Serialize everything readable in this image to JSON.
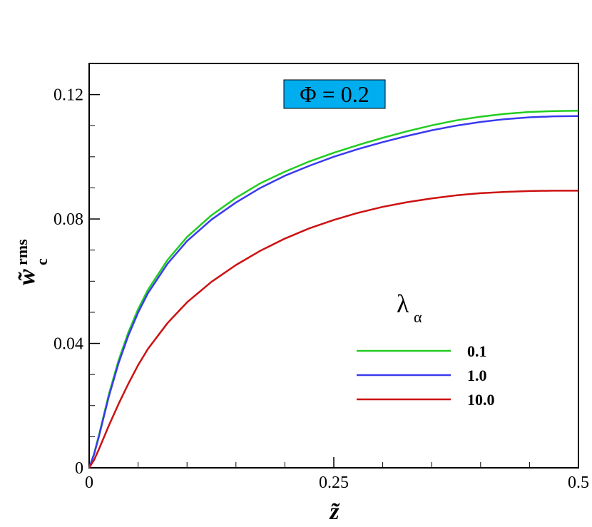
{
  "chart_data": {
    "type": "line",
    "title": "",
    "annotation": "Φ = 0.2",
    "xlabel": "z̃",
    "ylabel": {
      "base": "w̃",
      "superscript": "rms",
      "subscript": "c"
    },
    "xlim": [
      0,
      0.5
    ],
    "ylim": [
      0,
      0.13
    ],
    "x_ticks": [
      {
        "value": 0,
        "label": "0"
      },
      {
        "value": 0.25,
        "label": "0.25"
      },
      {
        "value": 0.5,
        "label": "0.5"
      }
    ],
    "y_ticks": [
      {
        "value": 0,
        "label": "0"
      },
      {
        "value": 0.04,
        "label": "0.04"
      },
      {
        "value": 0.08,
        "label": "0.08"
      },
      {
        "value": 0.12,
        "label": "0.12"
      }
    ],
    "x_minor_step": 0.05,
    "y_minor_step": 0.01,
    "grid": false,
    "legend": {
      "title": "λ",
      "title_subscript": "α",
      "placement": "center-right"
    },
    "x": [
      0,
      0.005,
      0.01,
      0.02,
      0.03,
      0.04,
      0.05,
      0.06,
      0.08,
      0.1,
      0.125,
      0.15,
      0.175,
      0.2,
      0.225,
      0.25,
      0.275,
      0.3,
      0.325,
      0.35,
      0.375,
      0.4,
      0.425,
      0.45,
      0.475,
      0.5
    ],
    "series": [
      {
        "name": "0.1",
        "color": "#22cc22",
        "values": [
          0,
          0.0045,
          0.0105,
          0.0235,
          0.0345,
          0.0435,
          0.051,
          0.0572,
          0.0668,
          0.0742,
          0.0812,
          0.0868,
          0.0915,
          0.0952,
          0.0985,
          0.1013,
          0.1038,
          0.1061,
          0.1082,
          0.1101,
          0.1117,
          0.1129,
          0.1138,
          0.1144,
          0.1147,
          0.1148
        ]
      },
      {
        "name": "1.0",
        "color": "#3a3aee",
        "values": [
          0,
          0.0043,
          0.0101,
          0.0228,
          0.0336,
          0.0425,
          0.0499,
          0.0561,
          0.0656,
          0.0729,
          0.0798,
          0.0853,
          0.09,
          0.0939,
          0.0971,
          0.1,
          0.1025,
          0.1047,
          0.1067,
          0.1085,
          0.11,
          0.1112,
          0.1121,
          0.1127,
          0.113,
          0.1131
        ]
      },
      {
        "name": "10.0",
        "color": "#cc1111",
        "values": [
          0,
          0.0025,
          0.006,
          0.0135,
          0.0205,
          0.027,
          0.033,
          0.0382,
          0.0465,
          0.0532,
          0.0598,
          0.0652,
          0.0698,
          0.0737,
          0.077,
          0.0797,
          0.082,
          0.0839,
          0.0854,
          0.0866,
          0.0876,
          0.0883,
          0.0887,
          0.089,
          0.0891,
          0.0891
        ]
      }
    ]
  }
}
